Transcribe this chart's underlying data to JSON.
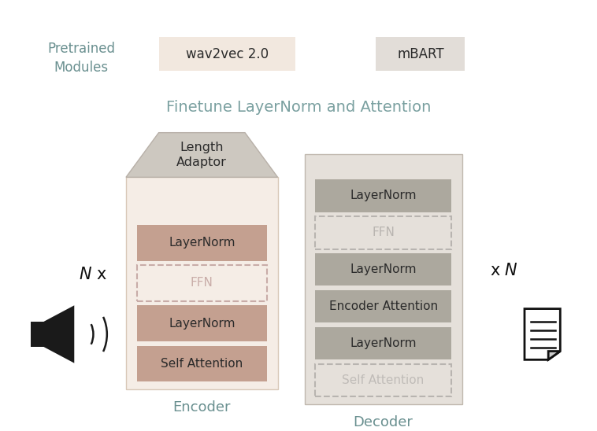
{
  "bg_color": "#ffffff",
  "title_finetune": "Finetune LayerNorm and Attention",
  "title_finetune_color": "#7aa0a0",
  "title_finetune_fontsize": 14,
  "pretrained_label": "Pretrained\nModules",
  "pretrained_label_color": "#6a9090",
  "wav2vec_label": "wav2vec 2.0",
  "wav2vec_bg": "#f2e8df",
  "mbart_label": "mBART",
  "mbart_bg": "#e2ddd8",
  "encoder_label": "Encoder",
  "encoder_label_color": "#6a9090",
  "decoder_label": "Decoder",
  "decoder_label_color": "#6a9090",
  "encoder_outer_bg": "#f5ede6",
  "encoder_outer_border": "#d8c8b8",
  "decoder_outer_bg": "#e5e0da",
  "decoder_outer_border": "#c0b8ae",
  "layernorm_bg_enc": "#c4a090",
  "layernorm_bg_dec": "#aca89e",
  "self_attn_bg_enc": "#c4a090",
  "enc_attn_bg": "#aca89e",
  "length_adaptor_bg": "#cdc8c0",
  "length_adaptor_border": "#b8b0a8",
  "ffn_dash_color_enc": "#c8aca8",
  "ffn_dash_color_dec": "#b8b4b0",
  "ffn_text_color_enc": "#c8aca8",
  "ffn_text_color_dec": "#b8b4b0",
  "self_attn_dec_text": "#c0bcb8",
  "box_text_color": "#2a2a2a",
  "n_label_color": "#111111"
}
